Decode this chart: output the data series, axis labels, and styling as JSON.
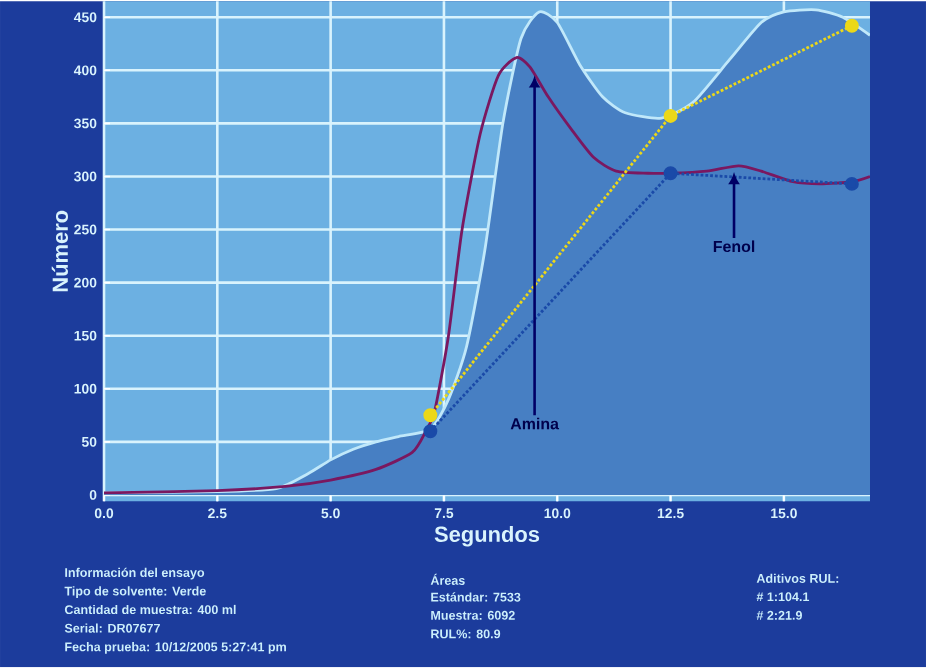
{
  "chart_data": {
    "type": "line",
    "xlabel": "Segundos",
    "ylabel": "Número",
    "xlim": [
      0,
      16.9
    ],
    "ylim": [
      -6,
      465
    ],
    "xticks": [
      {
        "value": 0,
        "label": "0.0"
      },
      {
        "value": 2.5,
        "label": "2.5"
      },
      {
        "value": 5,
        "label": "5.0"
      },
      {
        "value": 7.5,
        "label": "7.5"
      },
      {
        "value": 10,
        "label": "10.0"
      },
      {
        "value": 12.5,
        "label": "12.5"
      },
      {
        "value": 15,
        "label": "15.0"
      }
    ],
    "yticks": [
      0,
      50,
      100,
      150,
      200,
      250,
      300,
      350,
      400,
      450
    ],
    "grid": true,
    "series": [
      {
        "type": "area",
        "color": "#c0e8fa",
        "x": [
          0,
          2.5,
          3.8,
          4.5,
          5.0,
          5.5,
          6.0,
          6.5,
          7.2,
          7.6,
          8.0,
          8.4,
          8.8,
          9.2,
          9.6,
          10.0,
          10.5,
          11.0,
          11.5,
          12.3,
          13.0,
          13.8,
          14.5,
          15.0,
          15.7,
          16.3,
          16.9
        ],
        "values": [
          2,
          3,
          6,
          20,
          33,
          43,
          50,
          55,
          62,
          90,
          140,
          230,
          350,
          430,
          455,
          445,
          405,
          375,
          360,
          355,
          370,
          410,
          445,
          455,
          457,
          450,
          433
        ]
      },
      {
        "type": "line",
        "color": "#7a1860",
        "x": [
          0,
          2.5,
          4.0,
          5.0,
          6.0,
          6.8,
          7.1,
          7.3,
          7.6,
          7.9,
          8.3,
          8.7,
          9.1,
          9.4,
          9.8,
          10.3,
          10.8,
          11.3,
          12.0,
          12.5,
          13.3,
          14.0,
          14.5,
          15.2,
          15.8,
          16.5,
          16.9
        ],
        "values": [
          2,
          4,
          8,
          14,
          24,
          40,
          60,
          80,
          150,
          250,
          340,
          395,
          412,
          403,
          375,
          345,
          318,
          305,
          303,
          303,
          305,
          310,
          305,
          295,
          293,
          295,
          300
        ]
      },
      {
        "type": "line",
        "color": "#1a4aa8",
        "line_style": "dotted",
        "marker": "circle",
        "x": [
          7.2,
          12.5,
          16.5
        ],
        "values": [
          60,
          303,
          293
        ]
      },
      {
        "type": "line",
        "color": "#ecd818",
        "line_style": "dotted",
        "marker": "circle",
        "x": [
          7.2,
          12.5,
          16.5
        ],
        "values": [
          75,
          357,
          442
        ]
      }
    ],
    "annotations": [
      {
        "text": "Amina",
        "x": 9.5,
        "y": 395
      },
      {
        "text": "Fenol",
        "x": 13.9,
        "y": 304
      },
      "Información del ensayo",
      "Tipo de solvente: Verde",
      "Cantidad de muestra: 400 ml",
      "Serial: DR07677",
      "Fecha prueba: 10/12/2005 5:27:41 pm",
      "Áreas",
      "Estándar: 7533",
      "Muestra: 6092",
      "RUL%: 80.9",
      "Aditivos RUL:",
      "# 1:104.1",
      "# 2:21.9"
    ]
  }
}
